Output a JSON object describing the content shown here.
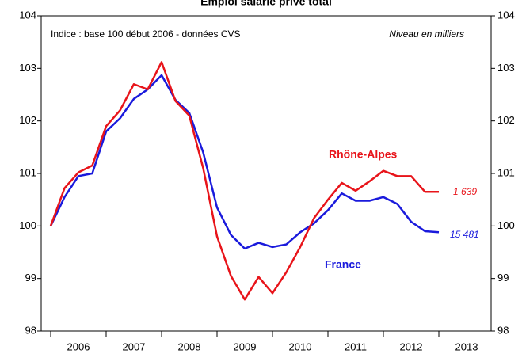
{
  "chart_data": {
    "type": "line",
    "title": "Emploi salarié privé total",
    "subtitle": "Indice : base 100  début  2006 - données CVS",
    "note": "Niveau en milliers",
    "x_labels": [
      "2006",
      "2007",
      "2008",
      "2009",
      "2010",
      "2011",
      "2012",
      "2013"
    ],
    "ylim": [
      98,
      104
    ],
    "yticks": [
      98,
      99,
      100,
      101,
      102,
      103,
      104
    ],
    "y2lim": [
      98,
      104
    ],
    "y2ticks": [
      98,
      99,
      100,
      101,
      102,
      103,
      104
    ],
    "series": [
      {
        "name": "Rhône-Alpes",
        "color": "#e8141a",
        "end_label": "1 639",
        "values": [
          100,
          100.72,
          101.02,
          101.15,
          101.9,
          102.2,
          102.7,
          102.6,
          103.12,
          102.38,
          102.1,
          101.1,
          99.8,
          99.05,
          98.6,
          99.03,
          98.72,
          99.12,
          99.6,
          100.15,
          100.5,
          100.82,
          100.67,
          100.85,
          101.05,
          100.95,
          100.95,
          100.65,
          100.65
        ]
      },
      {
        "name": "France",
        "color": "#1a1adc",
        "end_label": "15 481",
        "values": [
          100,
          100.55,
          100.95,
          101.0,
          101.8,
          102.05,
          102.42,
          102.6,
          102.87,
          102.4,
          102.15,
          101.4,
          100.35,
          99.83,
          99.57,
          99.68,
          99.6,
          99.65,
          99.88,
          100.05,
          100.3,
          100.62,
          100.48,
          100.48,
          100.55,
          100.42,
          100.08,
          99.9,
          99.88
        ]
      }
    ]
  }
}
